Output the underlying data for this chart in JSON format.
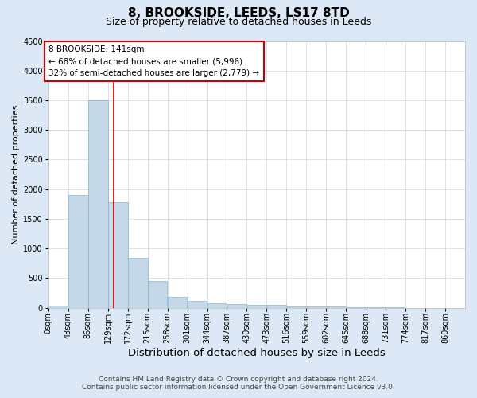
{
  "title": "8, BROOKSIDE, LEEDS, LS17 8TD",
  "subtitle": "Size of property relative to detached houses in Leeds",
  "xlabel": "Distribution of detached houses by size in Leeds",
  "ylabel": "Number of detached properties",
  "bar_labels": [
    "0sqm",
    "43sqm",
    "86sqm",
    "129sqm",
    "172sqm",
    "215sqm",
    "258sqm",
    "301sqm",
    "344sqm",
    "387sqm",
    "430sqm",
    "473sqm",
    "516sqm",
    "559sqm",
    "602sqm",
    "645sqm",
    "688sqm",
    "731sqm",
    "774sqm",
    "817sqm",
    "860sqm"
  ],
  "bar_values": [
    30,
    1900,
    3500,
    1775,
    840,
    450,
    175,
    110,
    80,
    55,
    50,
    45,
    25,
    20,
    15,
    10,
    5,
    5,
    0,
    0
  ],
  "bar_color": "#c5d8ea",
  "bar_edge_color": "#8ab4cc",
  "ylim": [
    0,
    4500
  ],
  "yticks": [
    0,
    500,
    1000,
    1500,
    2000,
    2500,
    3000,
    3500,
    4000,
    4500
  ],
  "property_line_x": 141,
  "property_line_color": "#cc0000",
  "annotation_text": "8 BROOKSIDE: 141sqm\n← 68% of detached houses are smaller (5,996)\n32% of semi-detached houses are larger (2,779) →",
  "annotation_box_color": "#ffffff",
  "annotation_box_edge_color": "#cc0000",
  "footnote1": "Contains HM Land Registry data © Crown copyright and database right 2024.",
  "footnote2": "Contains public sector information licensed under the Open Government Licence v3.0.",
  "fig_bg_color": "#dce8f5",
  "plot_bg_color": "#ffffff",
  "grid_color": "#c8d8e8",
  "title_fontsize": 11,
  "subtitle_fontsize": 9,
  "xlabel_fontsize": 9.5,
  "ylabel_fontsize": 8,
  "tick_fontsize": 7,
  "annot_fontsize": 7.5,
  "footnote_fontsize": 6.5,
  "bin_width": 43
}
